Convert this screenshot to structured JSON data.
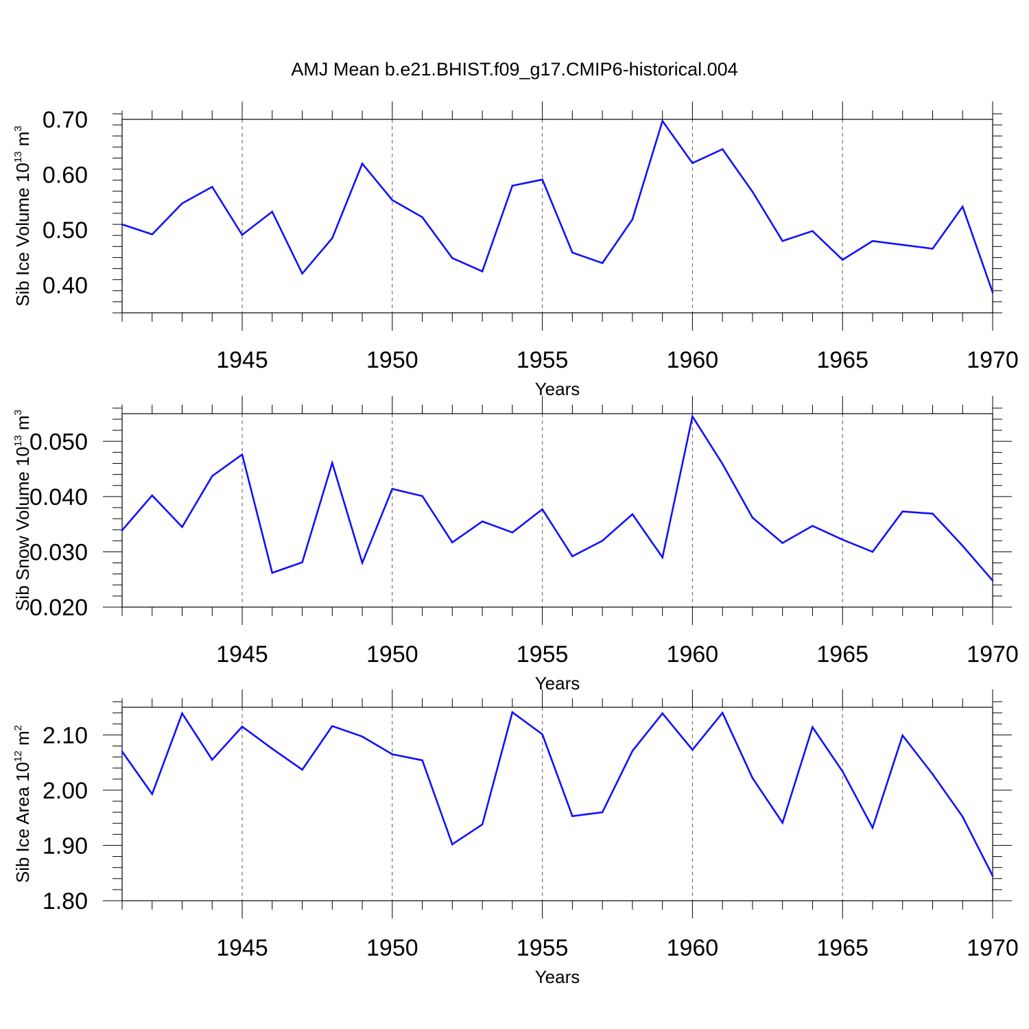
{
  "title": "AMJ Mean b.e21.BHIST.f09_g17.CMIP6-historical.004",
  "colors": {
    "line": "#1010ff",
    "axis": "#000000",
    "grid": "#555555"
  },
  "chart_data": [
    {
      "type": "line",
      "xlabel": "Years",
      "ylabel": {
        "prefix": "Sib Ice Volume 10",
        "exponent": "13",
        "unit": " m",
        "unit_exponent": "3"
      },
      "xlim": [
        1941,
        1970
      ],
      "ylim": [
        0.35,
        0.7
      ],
      "x_ticks": [
        1945,
        1950,
        1955,
        1960,
        1965,
        1970
      ],
      "x_tick_labels": [
        "1945",
        "1950",
        "1955",
        "1960",
        "1965",
        "1970"
      ],
      "y_ticks": [
        0.4,
        0.5,
        0.6,
        0.7
      ],
      "y_tick_labels": [
        "0.40",
        "0.50",
        "0.60",
        "0.70"
      ],
      "grid": "vertical dashed at major x ticks",
      "x": [
        1941,
        1942,
        1943,
        1944,
        1945,
        1946,
        1947,
        1948,
        1949,
        1950,
        1951,
        1952,
        1953,
        1954,
        1955,
        1956,
        1957,
        1958,
        1959,
        1960,
        1961,
        1962,
        1963,
        1964,
        1965,
        1966,
        1967,
        1968,
        1969,
        1970
      ],
      "values": [
        0.51,
        0.492,
        0.548,
        0.578,
        0.491,
        0.533,
        0.421,
        0.485,
        0.62,
        0.554,
        0.523,
        0.449,
        0.425,
        0.58,
        0.591,
        0.459,
        0.44,
        0.519,
        0.697,
        0.621,
        0.646,
        0.569,
        0.48,
        0.498,
        0.446,
        0.48,
        0.473,
        0.466,
        0.542,
        0.387
      ]
    },
    {
      "type": "line",
      "xlabel": "Years",
      "ylabel": {
        "prefix": "Sib Snow Volume 10",
        "exponent": "13",
        "unit": " m",
        "unit_exponent": "3"
      },
      "xlim": [
        1941,
        1970
      ],
      "ylim": [
        0.02,
        0.055
      ],
      "x_ticks": [
        1945,
        1950,
        1955,
        1960,
        1965,
        1970
      ],
      "x_tick_labels": [
        "1945",
        "1950",
        "1955",
        "1960",
        "1965",
        "1970"
      ],
      "y_ticks": [
        0.02,
        0.03,
        0.04,
        0.05
      ],
      "y_tick_labels": [
        "0.020",
        "0.030",
        "0.040",
        "0.050"
      ],
      "grid": "vertical dashed at major x ticks",
      "x": [
        1941,
        1942,
        1943,
        1944,
        1945,
        1946,
        1947,
        1948,
        1949,
        1950,
        1951,
        1952,
        1953,
        1954,
        1955,
        1956,
        1957,
        1958,
        1959,
        1960,
        1961,
        1962,
        1963,
        1964,
        1965,
        1966,
        1967,
        1968,
        1969,
        1970
      ],
      "values": [
        0.0339,
        0.0402,
        0.0345,
        0.0437,
        0.0476,
        0.0262,
        0.0281,
        0.0461,
        0.028,
        0.0414,
        0.0401,
        0.0317,
        0.0355,
        0.0335,
        0.0377,
        0.0292,
        0.032,
        0.0368,
        0.029,
        0.0545,
        0.0459,
        0.0362,
        0.0316,
        0.0347,
        0.0322,
        0.03,
        0.0373,
        0.0369,
        0.0311,
        0.0248
      ]
    },
    {
      "type": "line",
      "xlabel": "Years",
      "ylabel": {
        "prefix": "Sib Ice Area 10",
        "exponent": "12",
        "unit": " m",
        "unit_exponent": "2"
      },
      "xlim": [
        1941,
        1970
      ],
      "ylim": [
        1.8,
        2.15
      ],
      "x_ticks": [
        1945,
        1950,
        1955,
        1960,
        1965,
        1970
      ],
      "x_tick_labels": [
        "1945",
        "1950",
        "1955",
        "1960",
        "1965",
        "1970"
      ],
      "y_ticks": [
        1.8,
        1.9,
        2.0,
        2.1
      ],
      "y_tick_labels": [
        "1.80",
        "1.90",
        "2.00",
        "2.10"
      ],
      "grid": "vertical dashed at major x ticks",
      "x": [
        1941,
        1942,
        1943,
        1944,
        1945,
        1946,
        1947,
        1948,
        1949,
        1950,
        1951,
        1952,
        1953,
        1954,
        1955,
        1956,
        1957,
        1958,
        1959,
        1960,
        1961,
        1962,
        1963,
        1964,
        1965,
        1966,
        1967,
        1968,
        1969,
        1970
      ],
      "values": [
        2.07,
        1.993,
        2.139,
        2.055,
        2.115,
        2.075,
        2.037,
        2.116,
        2.097,
        2.065,
        2.054,
        1.902,
        1.938,
        2.141,
        2.101,
        1.953,
        1.96,
        2.071,
        2.139,
        2.073,
        2.14,
        2.022,
        1.941,
        2.114,
        2.034,
        1.932,
        2.099,
        2.029,
        1.952,
        1.845
      ]
    }
  ]
}
